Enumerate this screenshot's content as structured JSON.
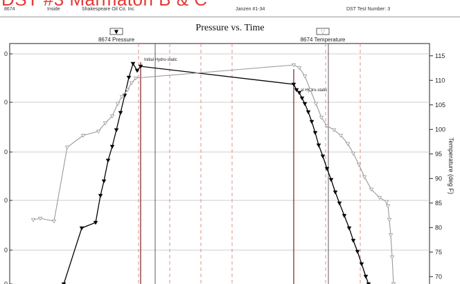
{
  "header": {
    "title": "DST #3 Marmaton B & C",
    "field1": "8674",
    "field2": "Inside",
    "company": "Shakespeare Oil Co. Inc",
    "well": "Janzen #1-34",
    "test_label": "DST Test Number: 3"
  },
  "chart_data": {
    "type": "line",
    "title": "Pressure vs. Time",
    "ylabel_right": "Temperature (deg F)",
    "y_right_ticks": [
      "115",
      "110",
      "105",
      "100",
      "95",
      "90",
      "85",
      "80",
      "75",
      "70"
    ],
    "y_right_range": [
      68.5,
      117.5
    ],
    "y_left_ticks": [
      "0",
      "0",
      "0",
      "0",
      "0",
      "0"
    ],
    "legend": [
      {
        "id": "pressure",
        "label": "8674 Pressure",
        "symbol": "▼",
        "color": "#000000"
      },
      {
        "id": "temperature",
        "label": "8674 Temperature",
        "symbol": "▽",
        "color": "#999999"
      }
    ],
    "annotations": [
      {
        "text": "Initial Hydro-static"
      },
      {
        "text": "al Hydro-static"
      }
    ],
    "series": [
      {
        "name": "8674 Pressure",
        "color": "#000000",
        "points": [
          [
            92,
            411
          ],
          [
            118,
            330
          ],
          [
            138,
            322
          ],
          [
            145,
            283
          ],
          [
            150,
            262
          ],
          [
            156,
            232
          ],
          [
            162,
            212
          ],
          [
            168,
            188
          ],
          [
            174,
            163
          ],
          [
            180,
            138
          ],
          [
            186,
            112
          ],
          [
            192,
            92
          ],
          [
            198,
            102
          ],
          [
            203,
            96
          ],
          [
            424,
            122
          ],
          [
            428,
            130
          ],
          [
            432,
            134
          ],
          [
            436,
            142
          ],
          [
            440,
            150
          ],
          [
            445,
            162
          ],
          [
            450,
            176
          ],
          [
            455,
            192
          ],
          [
            460,
            210
          ],
          [
            466,
            226
          ],
          [
            472,
            244
          ],
          [
            478,
            260
          ],
          [
            484,
            278
          ],
          [
            490,
            294
          ],
          [
            497,
            312
          ],
          [
            504,
            330
          ],
          [
            510,
            348
          ],
          [
            516,
            364
          ],
          [
            522,
            382
          ],
          [
            528,
            400
          ],
          [
            532,
            411
          ]
        ]
      },
      {
        "name": "8674 Temperature",
        "color": "#999999",
        "points": [
          [
            48,
            318
          ],
          [
            58,
            316
          ],
          [
            78,
            320
          ],
          [
            97,
            213
          ],
          [
            120,
            196
          ],
          [
            142,
            190
          ],
          [
            152,
            178
          ],
          [
            162,
            168
          ],
          [
            170,
            150
          ],
          [
            176,
            140
          ],
          [
            184,
            130
          ],
          [
            190,
            120
          ],
          [
            196,
            113
          ],
          [
            424,
            94
          ],
          [
            432,
            98
          ],
          [
            440,
            110
          ],
          [
            448,
            130
          ],
          [
            456,
            150
          ],
          [
            464,
            170
          ],
          [
            472,
            182
          ],
          [
            482,
            188
          ],
          [
            492,
            196
          ],
          [
            502,
            208
          ],
          [
            510,
            222
          ],
          [
            518,
            238
          ],
          [
            526,
            256
          ],
          [
            536,
            274
          ],
          [
            548,
            286
          ],
          [
            558,
            292
          ],
          [
            560,
            298
          ],
          [
            562,
            318
          ],
          [
            564,
            340
          ],
          [
            566,
            372
          ],
          [
            568,
            411
          ]
        ]
      }
    ]
  }
}
